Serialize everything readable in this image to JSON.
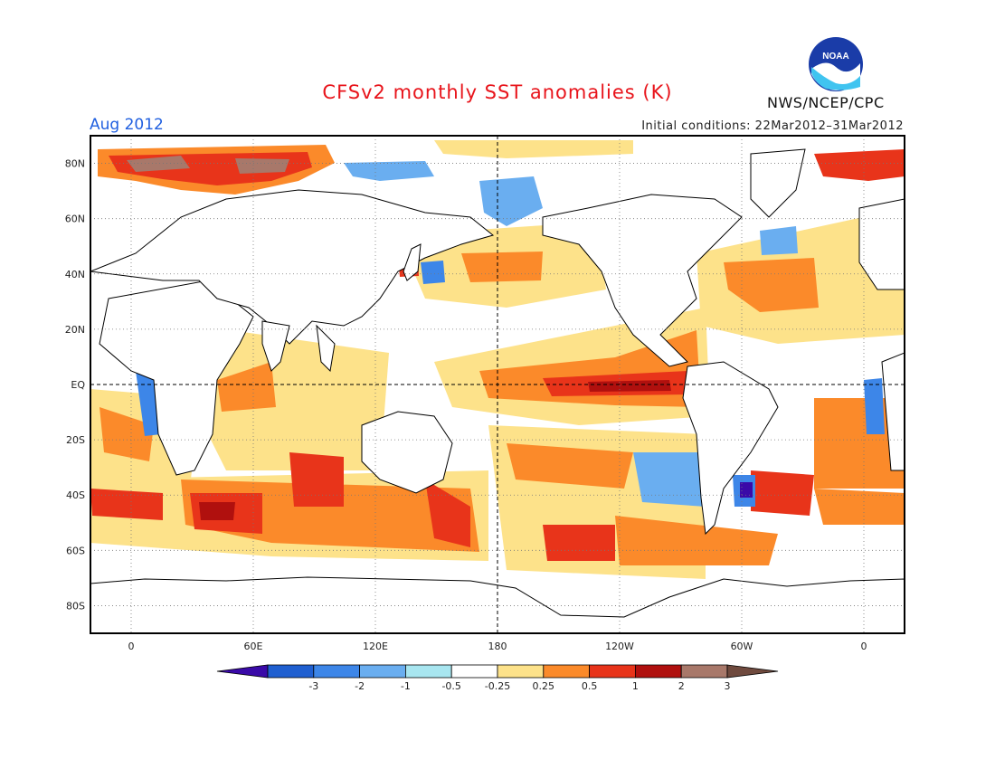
{
  "title": "CFSv2 monthly SST anomalies (K)",
  "valid_month": "Aug 2012",
  "initial_conditions": "Initial conditions: 22Mar2012–31Mar2012",
  "agency": "NWS/NCEP/CPC",
  "logo_text": "NOAA",
  "colors": {
    "title": "#e8141b",
    "month": "#1f5fe0",
    "land": "#ffffff"
  },
  "map": {
    "projection": "equirectangular",
    "lon_range": [
      -20,
      380
    ],
    "lat_range": [
      -90,
      90
    ],
    "lon_ticks": [
      {
        "lon": 0,
        "label": "0"
      },
      {
        "lon": 60,
        "label": "60E"
      },
      {
        "lon": 120,
        "label": "120E"
      },
      {
        "lon": 180,
        "label": "180"
      },
      {
        "lon": 240,
        "label": "120W"
      },
      {
        "lon": 300,
        "label": "60W"
      },
      {
        "lon": 360,
        "label": "0"
      }
    ],
    "lat_ticks": [
      {
        "lat": 80,
        "label": "80N"
      },
      {
        "lat": 60,
        "label": "60N"
      },
      {
        "lat": 40,
        "label": "40N"
      },
      {
        "lat": 20,
        "label": "20N"
      },
      {
        "lat": 0,
        "label": "EQ"
      },
      {
        "lat": -20,
        "label": "20S"
      },
      {
        "lat": -40,
        "label": "40S"
      },
      {
        "lat": -60,
        "label": "60S"
      },
      {
        "lat": -80,
        "label": "80S"
      }
    ]
  },
  "colorbar": {
    "levels": [
      "-3",
      "-2",
      "-1",
      "-0.5",
      "-0.25",
      "0.25",
      "0.5",
      "1",
      "2",
      "3"
    ],
    "colors": [
      "#3a0aa8",
      "#1f5fd0",
      "#3d86e8",
      "#6aaef0",
      "#a8e6f0",
      "#ffffff",
      "#fde28a",
      "#fb8a2a",
      "#e8341a",
      "#b0100e",
      "#a8786a",
      "#6f4a3e"
    ]
  },
  "anomaly_regions": [
    {
      "name": "Equatorial Pacific tongue",
      "lon": [
        180,
        285
      ],
      "lat": [
        -6,
        6
      ],
      "level": "1 to 2"
    },
    {
      "name": "Arctic north of Scandinavia",
      "lon": [
        0,
        80
      ],
      "lat": [
        70,
        85
      ],
      "level": "2 to 3"
    },
    {
      "name": "South Indian Ocean band",
      "lon": [
        30,
        130
      ],
      "lat": [
        -60,
        -35
      ],
      "level": "1 to 2"
    },
    {
      "name": "Southeast Pacific",
      "lon": [
        200,
        300
      ],
      "lat": [
        -62,
        -45
      ],
      "level": "1 to 2"
    },
    {
      "name": "Off Argentina",
      "lon": [
        305,
        310
      ],
      "lat": [
        -44,
        -36
      ],
      "level": "-3 to -2"
    }
  ]
}
